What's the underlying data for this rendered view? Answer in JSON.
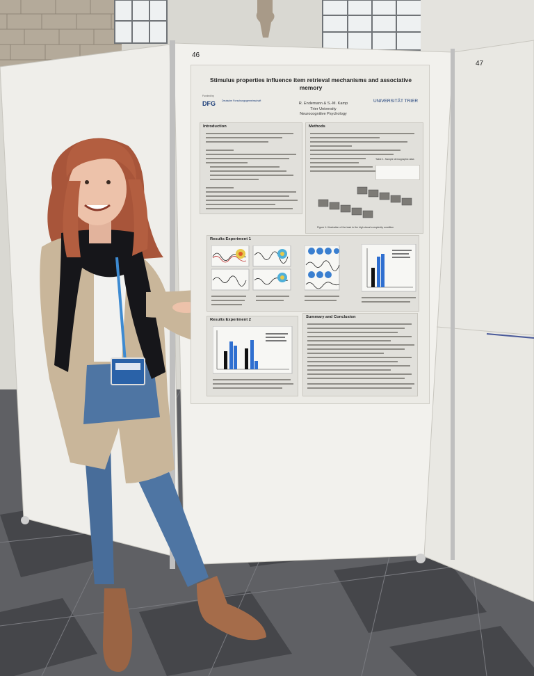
{
  "boards": {
    "left_number": "46",
    "right_number": "47"
  },
  "poster": {
    "title": "Stimulus properties influence item retrieval mechanisms and associative memory",
    "funded_by": "Funded by",
    "funder_logo": "DFG",
    "funder_name": "Deutsche Forschungsgemeinschaft",
    "authors": "R. Endemann & S.-M. Kamp",
    "university": "Trier University",
    "department": "Neurocognitive Psychology",
    "uni_logo": "UNIVERSITÄT TRIER",
    "sections": {
      "introduction": "Introduction",
      "methods": "Methods",
      "results1": "Results Experiment 1",
      "results2": "Results Experiment 2",
      "summary": "Summary and Conclusion"
    },
    "figure_caption": "Figure 1: Illustration of the task in the high visual complexity condition",
    "table_caption": "Table 1. Sample demographic data"
  },
  "colors": {
    "poster_bg": "#ecebe6",
    "bar_blue": "#2f6fd0",
    "bar_black": "#111111",
    "dfg_blue": "#1a3c78"
  },
  "person": {
    "icons": [
      "lanyard-badge-icon"
    ]
  }
}
